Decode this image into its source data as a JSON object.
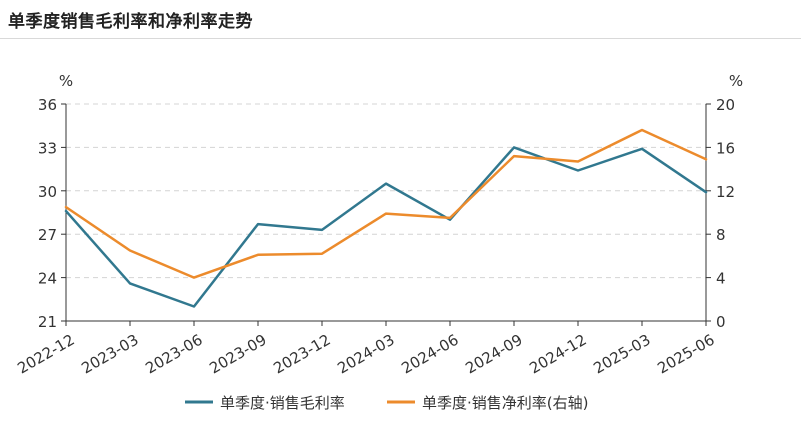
{
  "header": {
    "title": "单季度销售毛利率和净利率走势"
  },
  "chart_data": {
    "type": "line",
    "categories": [
      "2022-12",
      "2023-03",
      "2023-06",
      "2023-09",
      "2023-12",
      "2024-03",
      "2024-06",
      "2024-09",
      "2024-12",
      "2025-03",
      "2025-06"
    ],
    "series": [
      {
        "name": "单季度·销售毛利率",
        "axis": "left",
        "color": "#31788f",
        "values": [
          28.6,
          23.6,
          22.0,
          27.7,
          27.3,
          30.5,
          28.0,
          33.0,
          31.4,
          32.9,
          29.9
        ]
      },
      {
        "name": "单季度·销售净利率(右轴)",
        "axis": "right",
        "color": "#ec8b2c",
        "values": [
          10.5,
          6.5,
          4.0,
          6.1,
          6.2,
          9.9,
          9.5,
          15.2,
          14.7,
          17.6,
          14.9
        ]
      }
    ],
    "left_axis": {
      "unit": "%",
      "ylim": [
        21,
        36
      ],
      "ticks": [
        "21",
        "24",
        "27",
        "30",
        "33",
        "36"
      ]
    },
    "right_axis": {
      "unit": "%",
      "ylim": [
        0,
        20
      ],
      "ticks": [
        "0",
        "4",
        "8",
        "12",
        "16",
        "20"
      ]
    },
    "grid": true,
    "legend_placement": "bottom"
  }
}
